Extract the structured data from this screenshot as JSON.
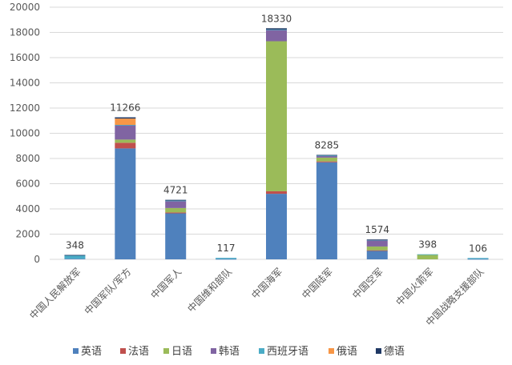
{
  "chart_data": {
    "type": "bar",
    "stacked": true,
    "title": "",
    "xlabel": "",
    "ylabel": "",
    "ylim": [
      0,
      20000
    ],
    "yticks": [
      0,
      2000,
      4000,
      6000,
      8000,
      10000,
      12000,
      14000,
      16000,
      18000,
      20000
    ],
    "ytick_labels": [
      "0",
      "2000",
      "4000",
      "6000",
      "8000",
      "10000",
      "12000",
      "14000",
      "16000",
      "18000",
      "20000"
    ],
    "grid": true,
    "legend_position": "bottom",
    "categories": [
      "中国人民解放军",
      "中国军队/军方",
      "中国军人",
      "中国维和部队",
      "中国海军",
      "中国陆军",
      "中国空军",
      "中国火箭军",
      "中国战略支援部队"
    ],
    "totals": [
      348,
      11266,
      4721,
      117,
      18330,
      8285,
      1574,
      398,
      106
    ],
    "total_labels": [
      "348",
      "11266",
      "4721",
      "117",
      "18330",
      "8285",
      "1574",
      "398",
      "106"
    ],
    "series": [
      {
        "name": "英语",
        "color": "#4f81bd",
        "values": [
          50,
          8800,
          3650,
          30,
          5200,
          7700,
          700,
          0,
          30
        ]
      },
      {
        "name": "法语",
        "color": "#c0504d",
        "values": [
          0,
          450,
          70,
          0,
          200,
          70,
          20,
          0,
          0
        ]
      },
      {
        "name": "日语",
        "color": "#9bbb59",
        "values": [
          0,
          250,
          350,
          0,
          11900,
          300,
          300,
          390,
          0
        ]
      },
      {
        "name": "韩语",
        "color": "#8064a2",
        "values": [
          0,
          1150,
          550,
          0,
          900,
          150,
          500,
          0,
          0
        ]
      },
      {
        "name": "西班牙语",
        "color": "#4bacc6",
        "values": [
          290,
          16,
          40,
          87,
          30,
          15,
          24,
          8,
          76
        ]
      },
      {
        "name": "俄语",
        "color": "#f79646",
        "values": [
          0,
          500,
          0,
          0,
          0,
          0,
          0,
          0,
          0
        ]
      },
      {
        "name": "德语",
        "color": "#1f3864",
        "values": [
          8,
          100,
          61,
          0,
          100,
          50,
          30,
          0,
          0
        ]
      }
    ]
  }
}
